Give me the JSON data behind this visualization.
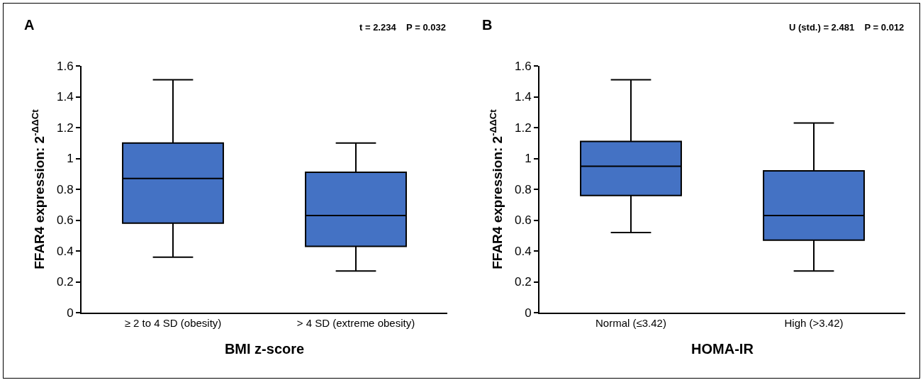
{
  "chart_data": [
    {
      "type": "box",
      "categories": [
        "≥ 2 to 4 SD (obesity)",
        "> 4 SD (extreme obesity)"
      ],
      "xlabel": "BMI z-score",
      "ylabel": "FFAR4 expression: 2$^{-ΔΔCt}$",
      "annotations": [
        "A",
        "t = 2.234    P = 0.032"
      ],
      "color": "#4472c4",
      "boxes": [
        {
          "low": 0.36,
          "q1": 0.58,
          "median": 0.87,
          "q3": 1.1,
          "high": 1.51
        },
        {
          "low": 0.27,
          "q1": 0.43,
          "median": 0.63,
          "q3": 0.91,
          "high": 1.1
        }
      ],
      "ylim": [
        0,
        1.6
      ],
      "yticks": [
        0,
        0.2,
        0.4,
        0.6,
        0.8,
        1,
        1.2,
        1.4,
        1.6
      ],
      "grid": false
    },
    {
      "type": "box",
      "categories": [
        "Normal (≤3.42)",
        "High (>3.42)"
      ],
      "xlabel": "HOMA-IR",
      "ylabel": "FFAR4 expression: 2$^{-ΔΔCt}$",
      "annotations": [
        "B",
        "U (std.) = 2.481    P = 0.012"
      ],
      "color": "#4472c4",
      "boxes": [
        {
          "low": 0.52,
          "q1": 0.76,
          "median": 0.95,
          "q3": 1.11,
          "high": 1.51
        },
        {
          "low": 0.27,
          "q1": 0.47,
          "median": 0.63,
          "q3": 0.92,
          "high": 1.23
        }
      ],
      "ylim": [
        0,
        1.6
      ],
      "yticks": [
        0,
        0.2,
        0.4,
        0.6,
        0.8,
        1,
        1.2,
        1.4,
        1.6
      ],
      "grid": false
    }
  ]
}
